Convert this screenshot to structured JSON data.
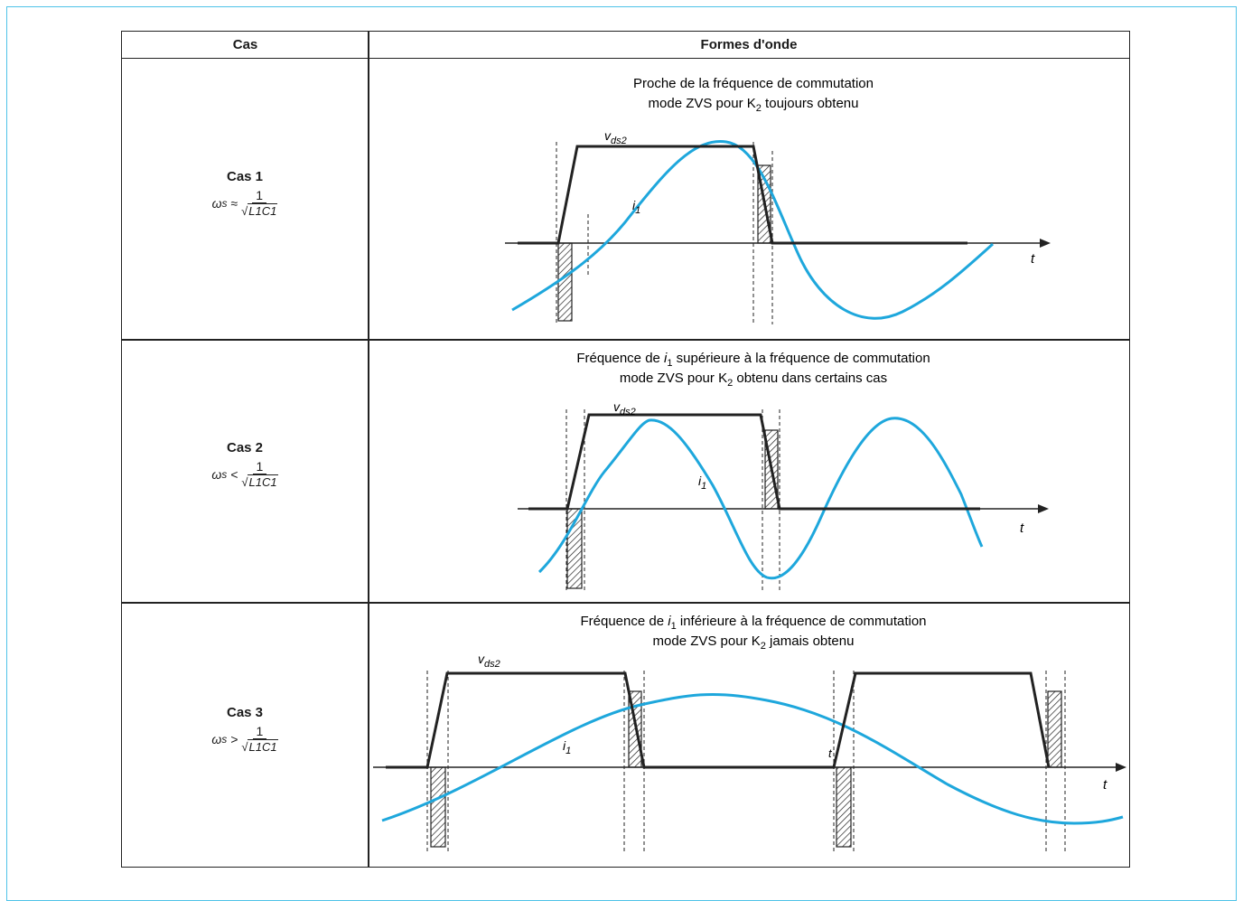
{
  "header": {
    "cas": "Cas",
    "formes": "Formes d'onde"
  },
  "colors": {
    "frame": "#4fc3e8",
    "current": "#1ea7dc",
    "voltage": "#222222"
  },
  "rows": [
    {
      "name": "Cas 1",
      "condition_lhs": "ω",
      "condition_sub": "s",
      "relation": "≈",
      "numerator": "1",
      "denominator": "L1C1",
      "title_line1": "Proche de la fréquence de commutation",
      "title_line2_pre": "mode ZVS pour K",
      "title_line2_sub": "2",
      "title_line2_post": " toujours obtenu",
      "vds_label": "v",
      "vds_sub": "ds2",
      "i_label": "i",
      "i_sub": "1",
      "t_label": "t"
    },
    {
      "name": "Cas 2",
      "condition_lhs": "ω",
      "condition_sub": "s",
      "relation": "<",
      "numerator": "1",
      "denominator": "L1C1",
      "title_line1_pre": "Fréquence de ",
      "title_line1_var": "i",
      "title_line1_sub": "1",
      "title_line1_post": " supérieure à la fréquence de commutation",
      "title_line2_pre": "mode ZVS pour K",
      "title_line2_sub": "2",
      "title_line2_post": " obtenu dans certains cas",
      "vds_label": "v",
      "vds_sub": "ds2",
      "i_label": "i",
      "i_sub": "1",
      "t_label": "t"
    },
    {
      "name": "Cas 3",
      "condition_lhs": "ω",
      "condition_sub": "s",
      "relation": ">",
      "numerator": "1",
      "denominator": "L1C1",
      "title_line1_pre": "Fréquence de ",
      "title_line1_var": "i",
      "title_line1_sub": "1",
      "title_line1_post": " inférieure à la fréquence de commutation",
      "title_line2_pre": "mode ZVS pour K",
      "title_line2_sub": "2",
      "title_line2_post": " jamais obtenu",
      "vds_label": "v",
      "vds_sub": "ds2",
      "i_label": "i",
      "i_sub": "1",
      "t_label": "t",
      "t_label_2": "t"
    }
  ]
}
